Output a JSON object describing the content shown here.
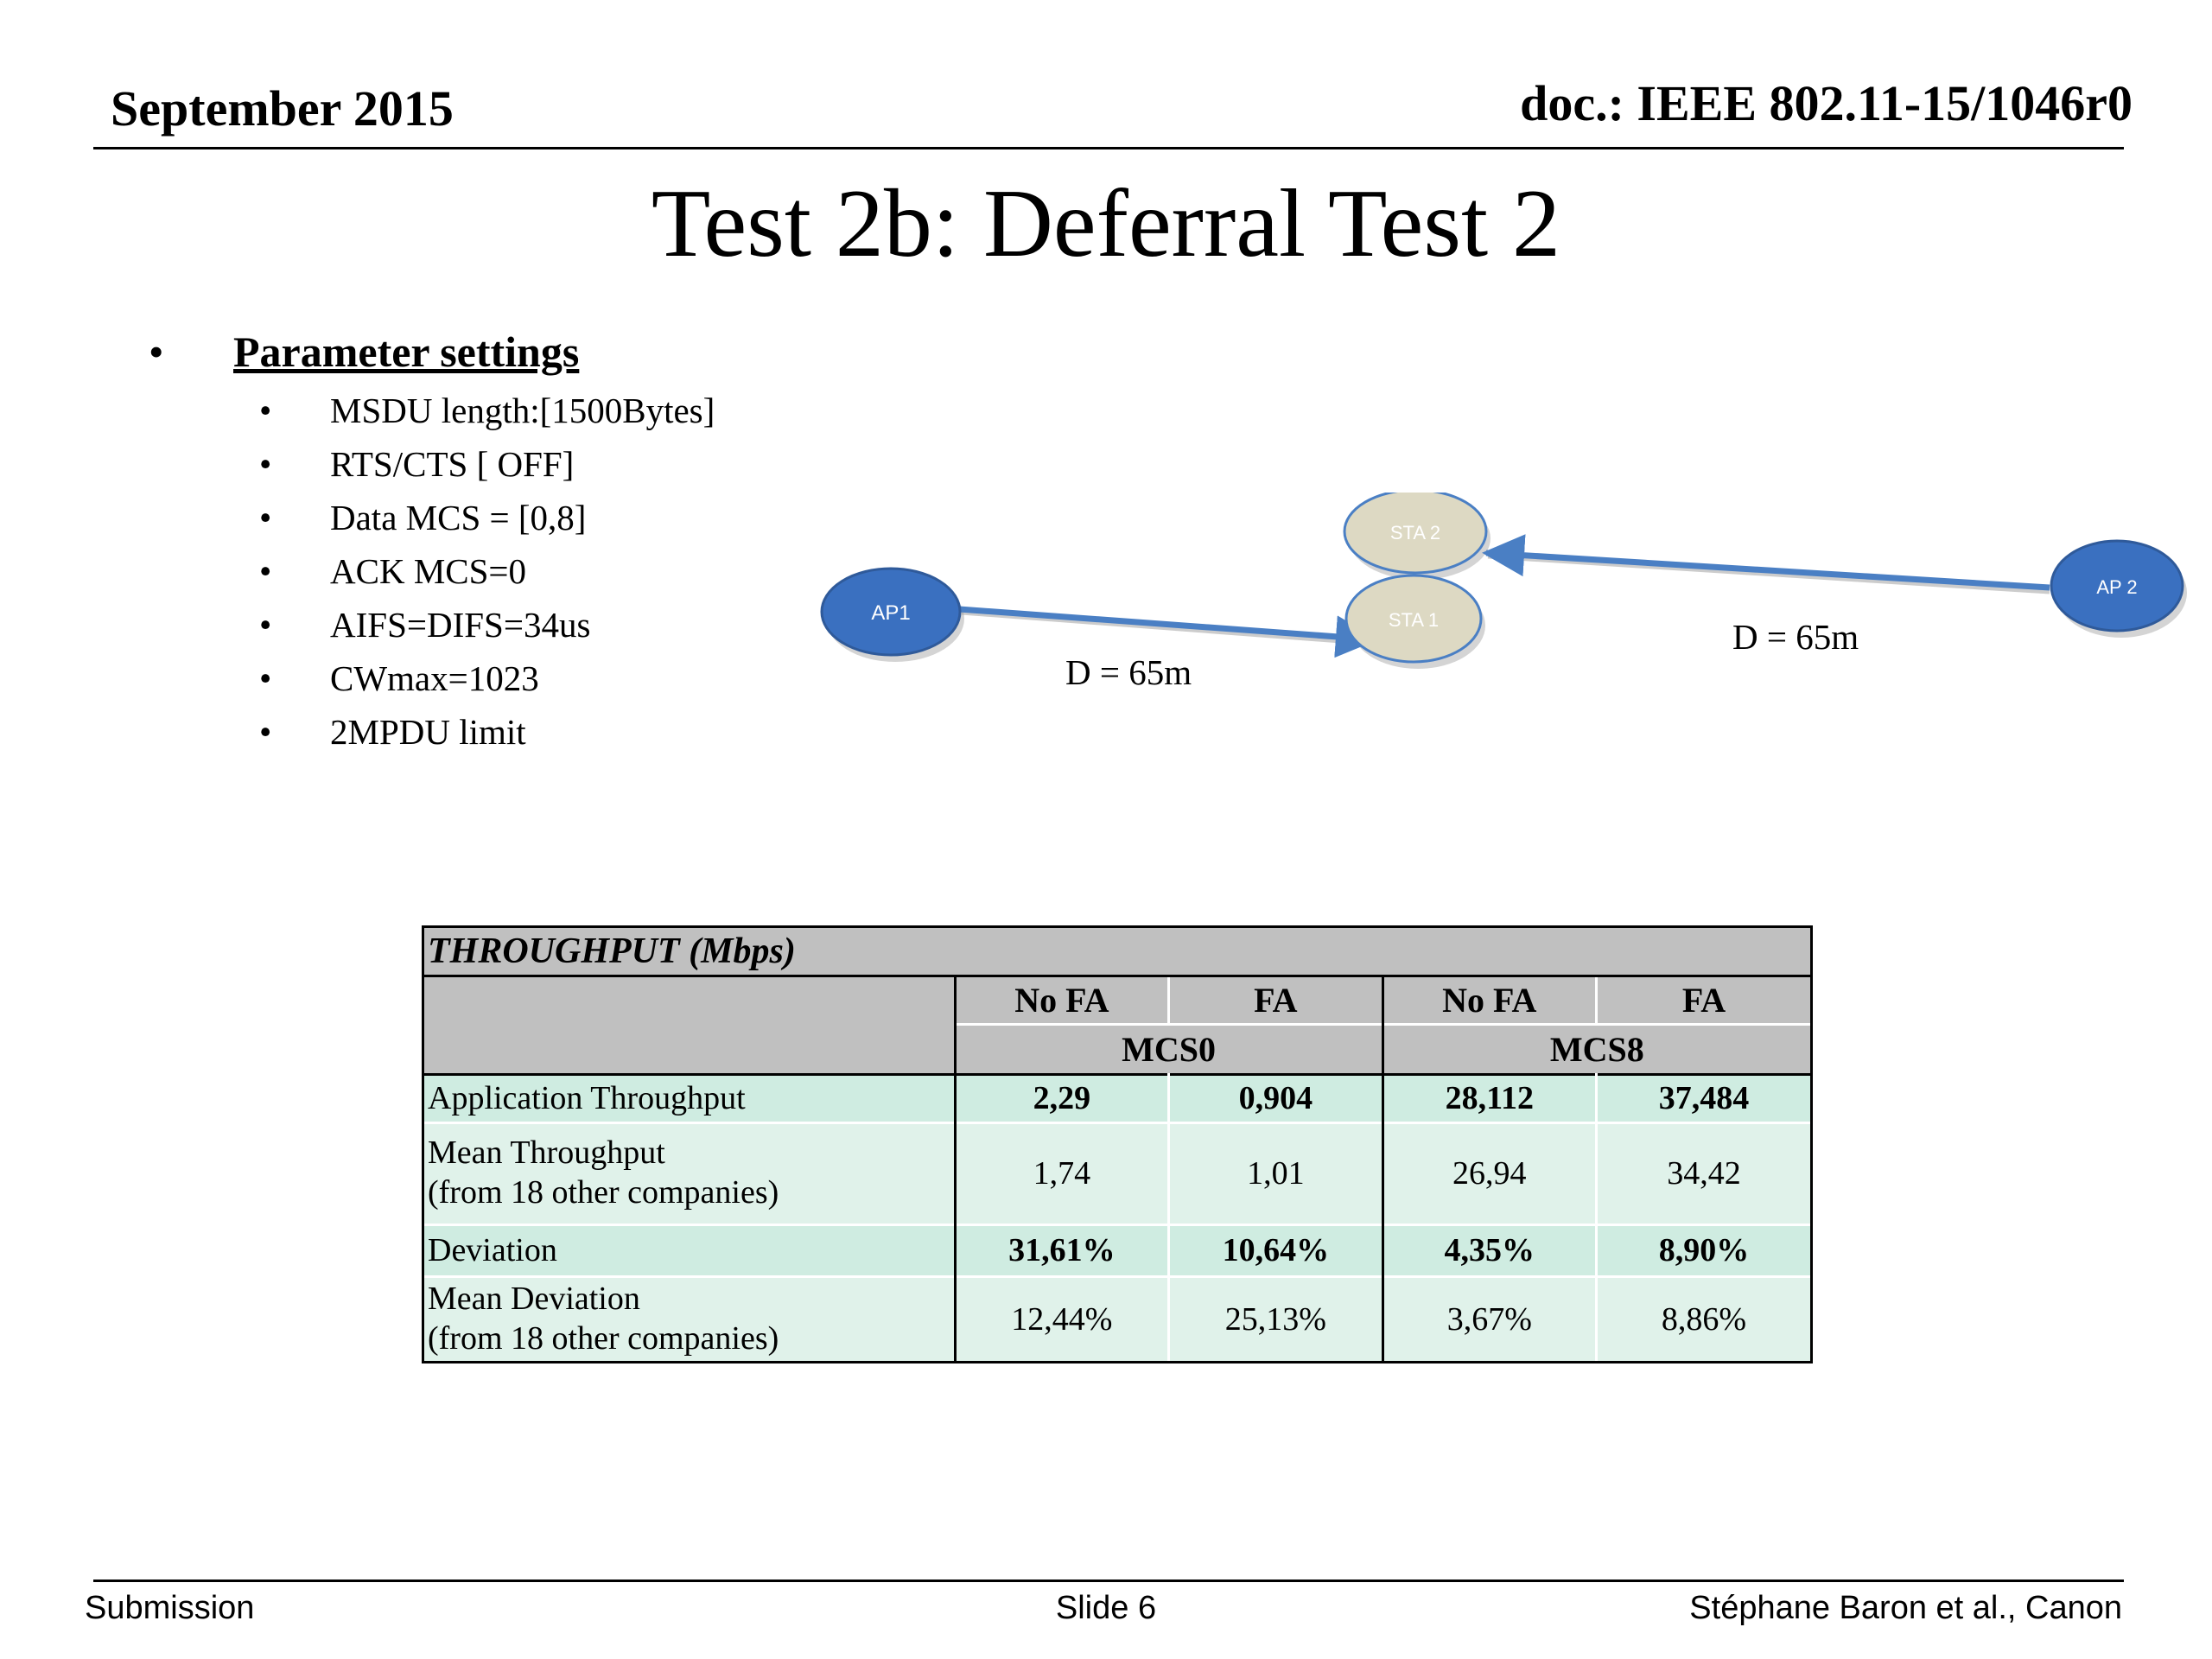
{
  "header": {
    "date": "September 2015",
    "doc": "doc.: IEEE 802.11-15/1046r0"
  },
  "title": "Test 2b: Deferral Test 2",
  "parameters": {
    "heading": "Parameter settings",
    "items": [
      "MSDU length:[1500Bytes]",
      "RTS/CTS [ OFF]",
      "Data MCS = [0,8]",
      "ACK MCS=0",
      "AIFS=DIFS=34us",
      "CWmax=1023",
      "2MPDU limit"
    ]
  },
  "diagram": {
    "nodes": {
      "ap1": "AP1",
      "sta1": "STA 1",
      "sta2": "STA 2",
      "ap2": "AP 2"
    },
    "distance_left": "D = 65m",
    "distance_right": "D = 65m",
    "colors": {
      "ap": "#3a70c0",
      "sta": "#ddd9c3",
      "arrow": "#4a7fc4"
    }
  },
  "table": {
    "caption": "THROUGHPUT (Mbps)",
    "fa_headers": [
      "No FA",
      "FA",
      "No FA",
      "FA"
    ],
    "mcs_headers": [
      "MCS0",
      "MCS8"
    ],
    "rows": [
      {
        "label1": "Application Throughput",
        "label2": "",
        "values": [
          "2,29",
          "0,904",
          "28,112",
          "37,484"
        ],
        "bold": true
      },
      {
        "label1": "Mean Throughput",
        "label2": "(from 18 other companies)",
        "values": [
          "1,74",
          "1,01",
          "26,94",
          "34,42"
        ],
        "bold": false
      },
      {
        "label1": "Deviation",
        "label2": "",
        "values": [
          "31,61%",
          "10,64%",
          "4,35%",
          "8,90%"
        ],
        "bold": true
      },
      {
        "label1": "Mean Deviation",
        "label2": "(from 18 other companies)",
        "values": [
          "12,44%",
          "25,13%",
          "3,67%",
          "8,86%"
        ],
        "bold": false
      }
    ],
    "colors": {
      "header": "#c0c0c0",
      "row_dark": "#cfece1",
      "row_light": "#e0f2ea"
    }
  },
  "footer": {
    "left": "Submission",
    "center": "Slide 6",
    "right": "Stéphane Baron et al., Canon"
  }
}
